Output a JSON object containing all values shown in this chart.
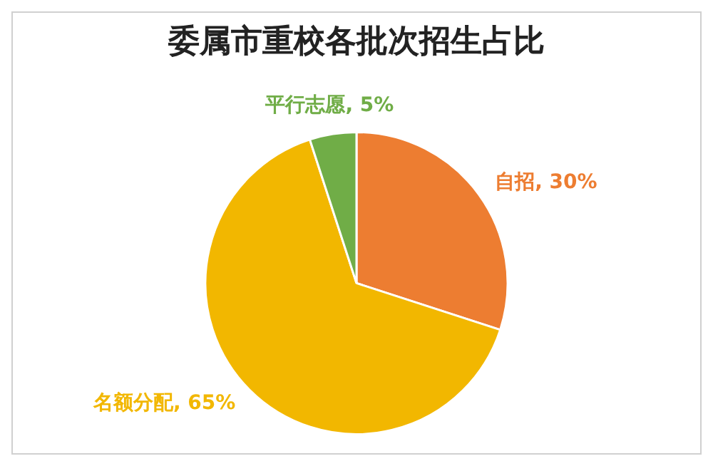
{
  "chart_data": {
    "type": "pie",
    "title": "委属市重校各批次招生占比",
    "categories": [
      "自招",
      "名额分配",
      "平行志愿"
    ],
    "values": [
      30,
      65,
      5
    ],
    "colors": [
      "#ed7d31",
      "#f2b700",
      "#70ad47"
    ],
    "value_labels": [
      "30%",
      "65%",
      "5%"
    ],
    "legend": false
  }
}
